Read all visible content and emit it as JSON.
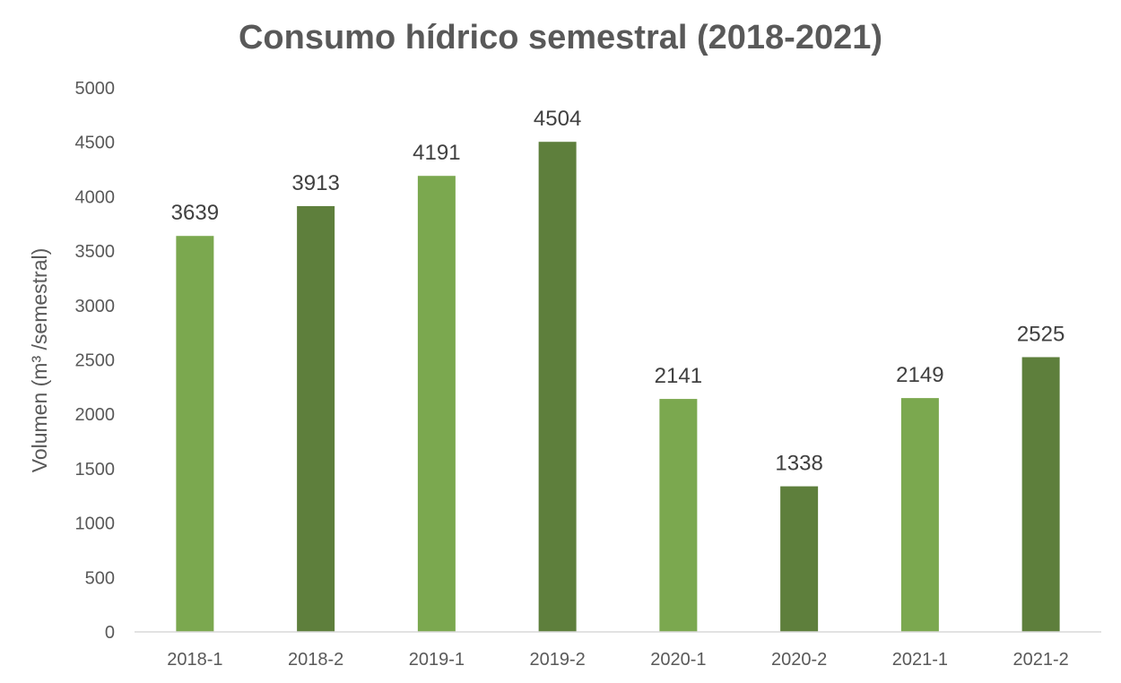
{
  "chart_data": {
    "type": "bar",
    "title": "Consumo hídrico semestral (2018-2021)",
    "ylabel": "Volumen (m³ /semestral)",
    "xlabel": "",
    "categories": [
      "2018-1",
      "2018-2",
      "2019-1",
      "2019-2",
      "2020-1",
      "2020-2",
      "2021-1",
      "2021-2"
    ],
    "values": [
      3639,
      3913,
      4191,
      4504,
      2141,
      1338,
      2149,
      2525
    ],
    "data_labels": [
      "3639",
      "3913",
      "4191",
      "4504",
      "2141",
      "1338",
      "2149",
      "2525"
    ],
    "ylim": [
      0,
      5000
    ],
    "yticks": [
      0,
      500,
      1000,
      1500,
      2000,
      2500,
      3000,
      3500,
      4000,
      4500,
      5000
    ],
    "ytick_labels": [
      "0",
      "500",
      "1000",
      "1500",
      "2000",
      "2500",
      "3000",
      "3500",
      "4000",
      "4500",
      "5000"
    ],
    "grid": false,
    "legend": "none",
    "bar_colors": [
      "#7ba84f",
      "#5e7f3c",
      "#7ba84f",
      "#5e7f3c",
      "#7ba84f",
      "#5e7f3c",
      "#7ba84f",
      "#5e7f3c"
    ]
  }
}
